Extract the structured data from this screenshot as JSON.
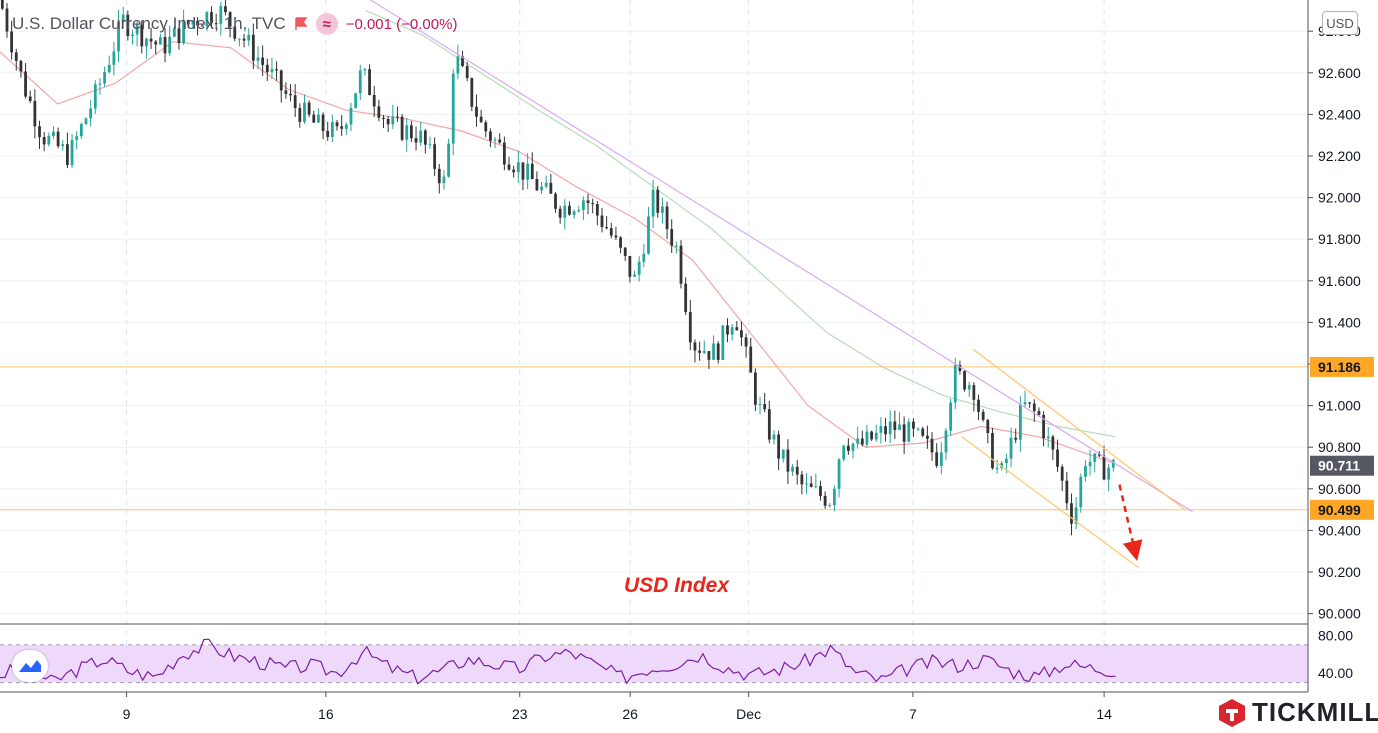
{
  "header": {
    "title": "U.S. Dollar Currency Index, 1h, TVC",
    "wave_symbol": "≈",
    "change": "−0.001 (−0.00%)"
  },
  "currency_button": "USD",
  "chart_label": "USD Index",
  "branding": {
    "name": "TICKMILL"
  },
  "colors": {
    "candle_up": "#26a69a",
    "candle_down": "#333333",
    "ma_fast": "#f4a6a6",
    "ma_slow": "#b7dcb7",
    "trendline": "#d9a8f2",
    "levels": "#ffc46b",
    "channel": "#ffc46b",
    "projection": "#e8261b",
    "rsi_line": "#7b1fa2",
    "rsi_band": "#efd9fb"
  },
  "chart_data": [
    {
      "type": "line",
      "subtype": "candlestick",
      "title": "U.S. Dollar Currency Index, 1h, TVC",
      "annotation": "USD Index",
      "x_ticks": [
        "9",
        "16",
        "23",
        "26",
        "Dec",
        "7",
        "14"
      ],
      "ylim": [
        89.95,
        92.95
      ],
      "y_ticks": [
        "92.800",
        "92.600",
        "92.400",
        "92.200",
        "92.000",
        "91.800",
        "91.600",
        "91.400",
        "91.200",
        "91.000",
        "90.800",
        "90.600",
        "90.400",
        "90.200",
        "90.000"
      ],
      "price_labels": [
        {
          "label": "91.186",
          "value": 91.186,
          "kind": "level"
        },
        {
          "label": "90.711",
          "value": 90.711,
          "kind": "last"
        },
        {
          "label": "90.499",
          "value": 90.499,
          "kind": "level"
        }
      ],
      "price_path": [
        {
          "x": 0.0,
          "y": 92.95
        },
        {
          "x": 0.6,
          "y": 92.55
        },
        {
          "x": 1.1,
          "y": 92.3
        },
        {
          "x": 1.8,
          "y": 92.2
        },
        {
          "x": 2.5,
          "y": 92.5
        },
        {
          "x": 3.2,
          "y": 92.85
        },
        {
          "x": 4.2,
          "y": 92.72
        },
        {
          "x": 5.0,
          "y": 92.85
        },
        {
          "x": 5.7,
          "y": 92.9
        },
        {
          "x": 6.4,
          "y": 92.75
        },
        {
          "x": 7.0,
          "y": 92.6
        },
        {
          "x": 7.6,
          "y": 92.45
        },
        {
          "x": 8.2,
          "y": 92.35
        },
        {
          "x": 8.8,
          "y": 92.3
        },
        {
          "x": 9.4,
          "y": 92.6
        },
        {
          "x": 10.1,
          "y": 92.35
        },
        {
          "x": 10.9,
          "y": 92.3
        },
        {
          "x": 11.6,
          "y": 92.05
        },
        {
          "x": 11.8,
          "y": 92.7
        },
        {
          "x": 12.5,
          "y": 92.35
        },
        {
          "x": 13.2,
          "y": 92.2
        },
        {
          "x": 14.0,
          "y": 92.05
        },
        {
          "x": 14.6,
          "y": 91.95
        },
        {
          "x": 15.2,
          "y": 92.0
        },
        {
          "x": 15.8,
          "y": 91.85
        },
        {
          "x": 16.5,
          "y": 91.6
        },
        {
          "x": 17.0,
          "y": 92.0
        },
        {
          "x": 17.6,
          "y": 91.75
        },
        {
          "x": 18.0,
          "y": 91.3
        },
        {
          "x": 18.6,
          "y": 91.25
        },
        {
          "x": 19.1,
          "y": 91.45
        },
        {
          "x": 19.7,
          "y": 91.0
        },
        {
          "x": 20.3,
          "y": 90.75
        },
        {
          "x": 20.9,
          "y": 90.6
        },
        {
          "x": 21.6,
          "y": 90.55
        },
        {
          "x": 21.9,
          "y": 90.85
        },
        {
          "x": 22.3,
          "y": 90.8
        },
        {
          "x": 23.2,
          "y": 90.9
        },
        {
          "x": 23.8,
          "y": 90.85
        },
        {
          "x": 24.4,
          "y": 90.75
        },
        {
          "x": 24.8,
          "y": 91.15
        },
        {
          "x": 25.3,
          "y": 91.1
        },
        {
          "x": 25.6,
          "y": 90.85
        },
        {
          "x": 26.0,
          "y": 90.65
        },
        {
          "x": 26.6,
          "y": 91.0
        },
        {
          "x": 27.0,
          "y": 90.95
        },
        {
          "x": 27.5,
          "y": 90.7
        },
        {
          "x": 27.9,
          "y": 90.45
        },
        {
          "x": 28.2,
          "y": 90.75
        },
        {
          "x": 28.6,
          "y": 90.7
        },
        {
          "x": 29.0,
          "y": 90.71
        }
      ],
      "ma_fast_path": [
        {
          "x": 0.0,
          "y": 92.7
        },
        {
          "x": 1.5,
          "y": 92.45
        },
        {
          "x": 3.0,
          "y": 92.55
        },
        {
          "x": 4.5,
          "y": 92.75
        },
        {
          "x": 6.0,
          "y": 92.72
        },
        {
          "x": 7.5,
          "y": 92.52
        },
        {
          "x": 9.0,
          "y": 92.42
        },
        {
          "x": 10.5,
          "y": 92.38
        },
        {
          "x": 12.0,
          "y": 92.32
        },
        {
          "x": 13.5,
          "y": 92.22
        },
        {
          "x": 15.0,
          "y": 92.05
        },
        {
          "x": 16.5,
          "y": 91.9
        },
        {
          "x": 18.0,
          "y": 91.7
        },
        {
          "x": 19.5,
          "y": 91.35
        },
        {
          "x": 21.0,
          "y": 91.0
        },
        {
          "x": 22.5,
          "y": 90.8
        },
        {
          "x": 24.0,
          "y": 90.82
        },
        {
          "x": 25.5,
          "y": 90.9
        },
        {
          "x": 27.0,
          "y": 90.85
        },
        {
          "x": 29.0,
          "y": 90.72
        }
      ],
      "ma_slow_path": [
        {
          "x": 9.5,
          "y": 92.9
        },
        {
          "x": 11.0,
          "y": 92.78
        },
        {
          "x": 12.5,
          "y": 92.6
        },
        {
          "x": 14.0,
          "y": 92.42
        },
        {
          "x": 15.5,
          "y": 92.25
        },
        {
          "x": 17.0,
          "y": 92.05
        },
        {
          "x": 18.5,
          "y": 91.85
        },
        {
          "x": 20.0,
          "y": 91.6
        },
        {
          "x": 21.5,
          "y": 91.35
        },
        {
          "x": 23.0,
          "y": 91.18
        },
        {
          "x": 24.5,
          "y": 91.05
        },
        {
          "x": 26.0,
          "y": 90.97
        },
        {
          "x": 27.5,
          "y": 90.9
        },
        {
          "x": 29.0,
          "y": 90.85
        }
      ],
      "trendline": [
        {
          "x": 9.2,
          "y": 93.0
        },
        {
          "x": 31.0,
          "y": 90.49
        }
      ],
      "channel_upper": [
        {
          "x": 25.3,
          "y": 91.27
        },
        {
          "x": 30.8,
          "y": 90.5
        }
      ],
      "channel_lower": [
        {
          "x": 25.0,
          "y": 90.85
        },
        {
          "x": 29.6,
          "y": 90.22
        }
      ],
      "projection_arrow": [
        {
          "x": 29.1,
          "y": 90.62
        },
        {
          "x": 29.5,
          "y": 90.3
        }
      ]
    },
    {
      "type": "line",
      "subtype": "rsi",
      "ylim": [
        20,
        90
      ],
      "y_ticks": [
        "80.00",
        "40.00"
      ],
      "bands": [
        30,
        70
      ],
      "values": [
        38,
        48,
        30,
        44,
        55,
        42,
        36,
        60,
        70,
        58,
        52,
        45,
        48,
        40,
        63,
        46,
        35,
        42,
        55,
        50,
        44,
        58,
        62,
        48,
        35,
        45,
        50,
        60,
        46,
        38,
        44,
        52,
        66,
        40,
        32,
        45,
        52,
        48,
        55,
        42,
        36,
        50,
        46,
        43
      ]
    }
  ]
}
